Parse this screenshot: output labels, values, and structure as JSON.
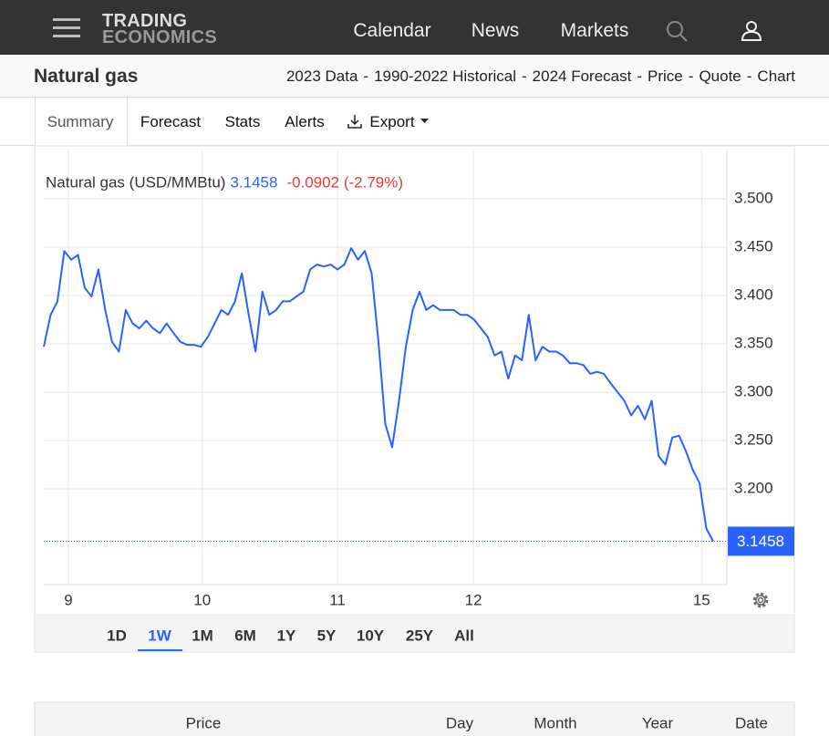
{
  "nav": {
    "logo_top": "TRADING",
    "logo_bottom": "ECONOMICS",
    "links": [
      "Calendar",
      "News",
      "Markets"
    ]
  },
  "header": {
    "title": "Natural gas",
    "separator": "-",
    "links": [
      "2023 Data",
      "1990-2022 Historical",
      "2024 Forecast",
      "Price",
      "Quote",
      "Chart"
    ]
  },
  "tabs": [
    "Summary",
    "Forecast",
    "Stats",
    "Alerts",
    "Export"
  ],
  "chart_data": {
    "type": "line",
    "series": [
      {
        "name": "Natural gas (USD/MMBtu)",
        "color": "#2962ff",
        "values": [
          3.347,
          3.38,
          3.394,
          3.446,
          3.437,
          3.442,
          3.408,
          3.399,
          3.427,
          3.385,
          3.352,
          3.342,
          3.385,
          3.371,
          3.366,
          3.374,
          3.366,
          3.361,
          3.371,
          3.361,
          3.352,
          3.349,
          3.349,
          3.347,
          3.357,
          3.371,
          3.385,
          3.38,
          3.394,
          3.423,
          3.38,
          3.342,
          3.404,
          3.38,
          3.385,
          3.394,
          3.394,
          3.399,
          3.404,
          3.427,
          3.432,
          3.43,
          3.432,
          3.427,
          3.432,
          3.449,
          3.437,
          3.446,
          3.423,
          3.352,
          3.267,
          3.243,
          3.291,
          3.347,
          3.385,
          3.404,
          3.385,
          3.39,
          3.385,
          3.385,
          3.385,
          3.38,
          3.38,
          3.375,
          3.366,
          3.357,
          3.338,
          3.342,
          3.314,
          3.338,
          3.333,
          3.38,
          3.333,
          3.347,
          3.342,
          3.342,
          3.338,
          3.33,
          3.33,
          3.328,
          3.319,
          3.321,
          3.319,
          3.309,
          3.3,
          3.291,
          3.276,
          3.286,
          3.272,
          3.291,
          3.234,
          3.225,
          3.253,
          3.255,
          3.239,
          3.22,
          3.206,
          3.159,
          3.1458
        ]
      }
    ],
    "last_price": 3.1458,
    "last_price_color": "#2962ff",
    "change_label": "-0.0902 (-2.79%)",
    "change_color": "#e53935",
    "xlim": [
      0,
      100
    ],
    "xticks": [
      {
        "value": 3.6,
        "label": "9"
      },
      {
        "value": 23.2,
        "label": "10"
      },
      {
        "value": 43,
        "label": "11"
      },
      {
        "value": 62.9,
        "label": "12"
      },
      {
        "value": 96.3,
        "label": "15"
      }
    ],
    "ylim": [
      3.1,
      3.55
    ],
    "yticks": [
      {
        "value": 3.2,
        "label": "3.200"
      },
      {
        "value": 3.25,
        "label": "3.250"
      },
      {
        "value": 3.3,
        "label": "3.300"
      },
      {
        "value": 3.35,
        "label": "3.350"
      },
      {
        "value": 3.4,
        "label": "3.400"
      },
      {
        "value": 3.45,
        "label": "3.450"
      },
      {
        "value": 3.5,
        "label": "3.500"
      }
    ],
    "grid": true
  },
  "ranges": [
    "1D",
    "1W",
    "1M",
    "6M",
    "1Y",
    "5Y",
    "10Y",
    "25Y",
    "All"
  ],
  "active_range_index": 1,
  "table_header": [
    "Price",
    "Day",
    "Month",
    "Year",
    "Date"
  ]
}
